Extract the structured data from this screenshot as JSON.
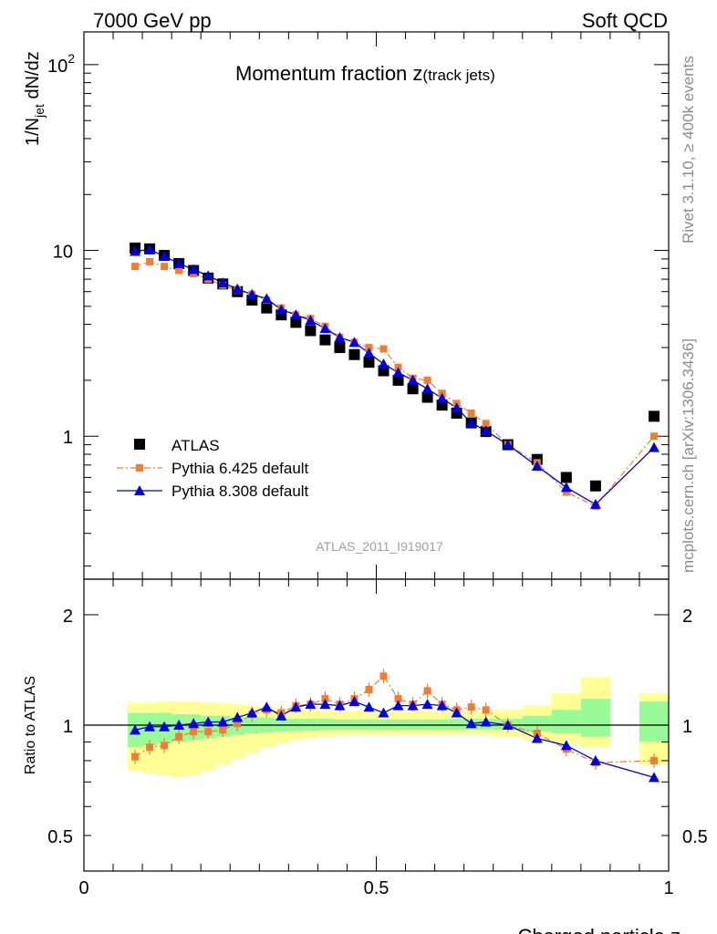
{
  "header": {
    "left": "7000 GeV pp",
    "right": "Soft QCD"
  },
  "side": {
    "rivet": "Rivet 3.1.10, ≥ 400k events",
    "mcplots": "mcplots.cern.ch [arXiv:1306.3436]"
  },
  "chart_data": [
    {
      "type": "scatter",
      "title_main": "Momentum fraction ",
      "title_var": "z",
      "title_sub": "(track jets)",
      "ylabel_main": "1/N",
      "ylabel_sub": "jet",
      "ylabel_rest": " dN/dz",
      "xlabel": "Charged particle z",
      "analysis_label": "ATLAS_2011_I919017",
      "yscale": "log",
      "ylim": [
        0.17,
        150
      ],
      "xlim": [
        0,
        1
      ],
      "y_tick_labels": [
        {
          "value": 1,
          "label": "1"
        },
        {
          "value": 10,
          "label": "10"
        },
        {
          "value": 100,
          "label": "10",
          "sup": "2"
        }
      ],
      "legend_position": "bottom-left",
      "x": [
        0.0875,
        0.1125,
        0.1375,
        0.1625,
        0.1875,
        0.2125,
        0.2375,
        0.2625,
        0.2875,
        0.3125,
        0.3375,
        0.3625,
        0.3875,
        0.4125,
        0.4375,
        0.4625,
        0.4875,
        0.5125,
        0.5375,
        0.5625,
        0.5875,
        0.6125,
        0.6375,
        0.6625,
        0.6875,
        0.725,
        0.775,
        0.825,
        0.875,
        0.975
      ],
      "series": [
        {
          "name": "ATLAS",
          "color": "#000000",
          "marker": "square",
          "values": [
            10.3,
            10.2,
            9.4,
            8.5,
            7.8,
            7.1,
            6.6,
            6.0,
            5.4,
            4.9,
            4.5,
            4.1,
            3.7,
            3.3,
            3.0,
            2.75,
            2.5,
            2.25,
            2.0,
            1.8,
            1.62,
            1.47,
            1.33,
            1.18,
            1.06,
            0.9,
            0.75,
            0.6,
            0.54,
            1.28
          ]
        },
        {
          "name": "Pythia 6.425 default",
          "color": "#f07d32",
          "marker": "square-small",
          "line": "dash-dot",
          "values": [
            8.2,
            8.7,
            8.2,
            7.8,
            7.5,
            7.0,
            6.5,
            6.1,
            5.8,
            5.4,
            4.9,
            4.5,
            4.3,
            3.9,
            3.4,
            3.2,
            3.0,
            2.95,
            2.35,
            2.05,
            2.0,
            1.7,
            1.5,
            1.33,
            1.17,
            0.9,
            0.72,
            0.5,
            0.42,
            1.0
          ]
        },
        {
          "name": "Pythia 8.308 default",
          "color": "#0000e0",
          "marker": "triangle",
          "line": "solid",
          "values": [
            9.9,
            10.1,
            9.3,
            8.5,
            7.9,
            7.3,
            6.7,
            6.2,
            5.8,
            5.5,
            4.8,
            4.5,
            4.2,
            3.8,
            3.4,
            3.2,
            2.8,
            2.45,
            2.2,
            2.0,
            1.8,
            1.6,
            1.42,
            1.18,
            1.07,
            0.9,
            0.69,
            0.53,
            0.43,
            0.87
          ]
        }
      ]
    },
    {
      "type": "scatter",
      "ylabel": "Ratio to ATLAS",
      "yscale": "log",
      "ylim": [
        0.4,
        2.5
      ],
      "xlim": [
        0,
        1
      ],
      "y_tick_labels": [
        {
          "value": 0.5,
          "label": "0.5"
        },
        {
          "value": 1,
          "label": "1"
        },
        {
          "value": 2,
          "label": "2"
        }
      ],
      "x_tick_labels": [
        {
          "value": 0,
          "label": "0"
        },
        {
          "value": 0.5,
          "label": "0.5"
        },
        {
          "value": 1,
          "label": "1"
        }
      ],
      "bands": {
        "bin_edges": [
          0.075,
          0.1,
          0.125,
          0.15,
          0.175,
          0.2,
          0.225,
          0.25,
          0.275,
          0.3,
          0.325,
          0.35,
          0.375,
          0.4,
          0.425,
          0.45,
          0.475,
          0.5,
          0.525,
          0.55,
          0.575,
          0.6,
          0.625,
          0.65,
          0.675,
          0.7,
          0.75,
          0.8,
          0.85,
          0.9,
          0.95,
          1.0
        ],
        "inner_color": "#98fb98",
        "outer_color": "#ffff96",
        "inner_lo": [
          0.87,
          0.88,
          0.89,
          0.9,
          0.91,
          0.92,
          0.93,
          0.94,
          0.95,
          0.955,
          0.96,
          0.963,
          0.966,
          0.968,
          0.97,
          0.97,
          0.97,
          0.97,
          0.97,
          0.97,
          0.97,
          0.97,
          0.97,
          0.97,
          0.97,
          0.97,
          0.96,
          0.95,
          0.93,
          null,
          0.9
        ],
        "inner_hi": [
          1.08,
          1.08,
          1.08,
          1.07,
          1.07,
          1.06,
          1.06,
          1.05,
          1.05,
          1.05,
          1.04,
          1.04,
          1.04,
          1.04,
          1.035,
          1.035,
          1.035,
          1.035,
          1.035,
          1.035,
          1.035,
          1.035,
          1.04,
          1.04,
          1.04,
          1.04,
          1.06,
          1.1,
          1.18,
          null,
          1.16
        ],
        "outer_lo": [
          0.75,
          0.74,
          0.73,
          0.72,
          0.73,
          0.75,
          0.78,
          0.81,
          0.84,
          0.87,
          0.89,
          0.91,
          0.92,
          0.93,
          0.935,
          0.94,
          0.94,
          0.94,
          0.94,
          0.94,
          0.94,
          0.94,
          0.94,
          0.94,
          0.94,
          0.93,
          0.91,
          0.89,
          0.87,
          null,
          0.78
        ],
        "outer_hi": [
          1.15,
          1.15,
          1.16,
          1.16,
          1.16,
          1.15,
          1.15,
          1.14,
          1.13,
          1.12,
          1.11,
          1.1,
          1.1,
          1.09,
          1.09,
          1.09,
          1.09,
          1.09,
          1.09,
          1.09,
          1.09,
          1.09,
          1.09,
          1.09,
          1.09,
          1.1,
          1.13,
          1.22,
          1.35,
          null,
          1.22
        ]
      },
      "series": [
        {
          "name": "Pythia 6.425 default",
          "color": "#f07d32",
          "values": [
            0.82,
            0.87,
            0.88,
            0.93,
            0.96,
            0.96,
            0.97,
            1.01,
            1.07,
            1.1,
            1.08,
            1.13,
            1.14,
            1.18,
            1.14,
            1.18,
            1.25,
            1.36,
            1.18,
            1.14,
            1.24,
            1.14,
            1.1,
            1.12,
            1.1,
            1.0,
            0.95,
            0.86,
            0.79,
            0.8
          ]
        },
        {
          "name": "Pythia 8.308 default",
          "color": "#0000e0",
          "values": [
            0.97,
            0.99,
            0.99,
            1.0,
            1.01,
            1.02,
            1.02,
            1.05,
            1.08,
            1.12,
            1.06,
            1.12,
            1.14,
            1.14,
            1.13,
            1.16,
            1.12,
            1.08,
            1.13,
            1.13,
            1.14,
            1.13,
            1.08,
            1.01,
            1.02,
            1.0,
            0.92,
            0.88,
            0.8,
            0.72
          ]
        }
      ]
    }
  ]
}
